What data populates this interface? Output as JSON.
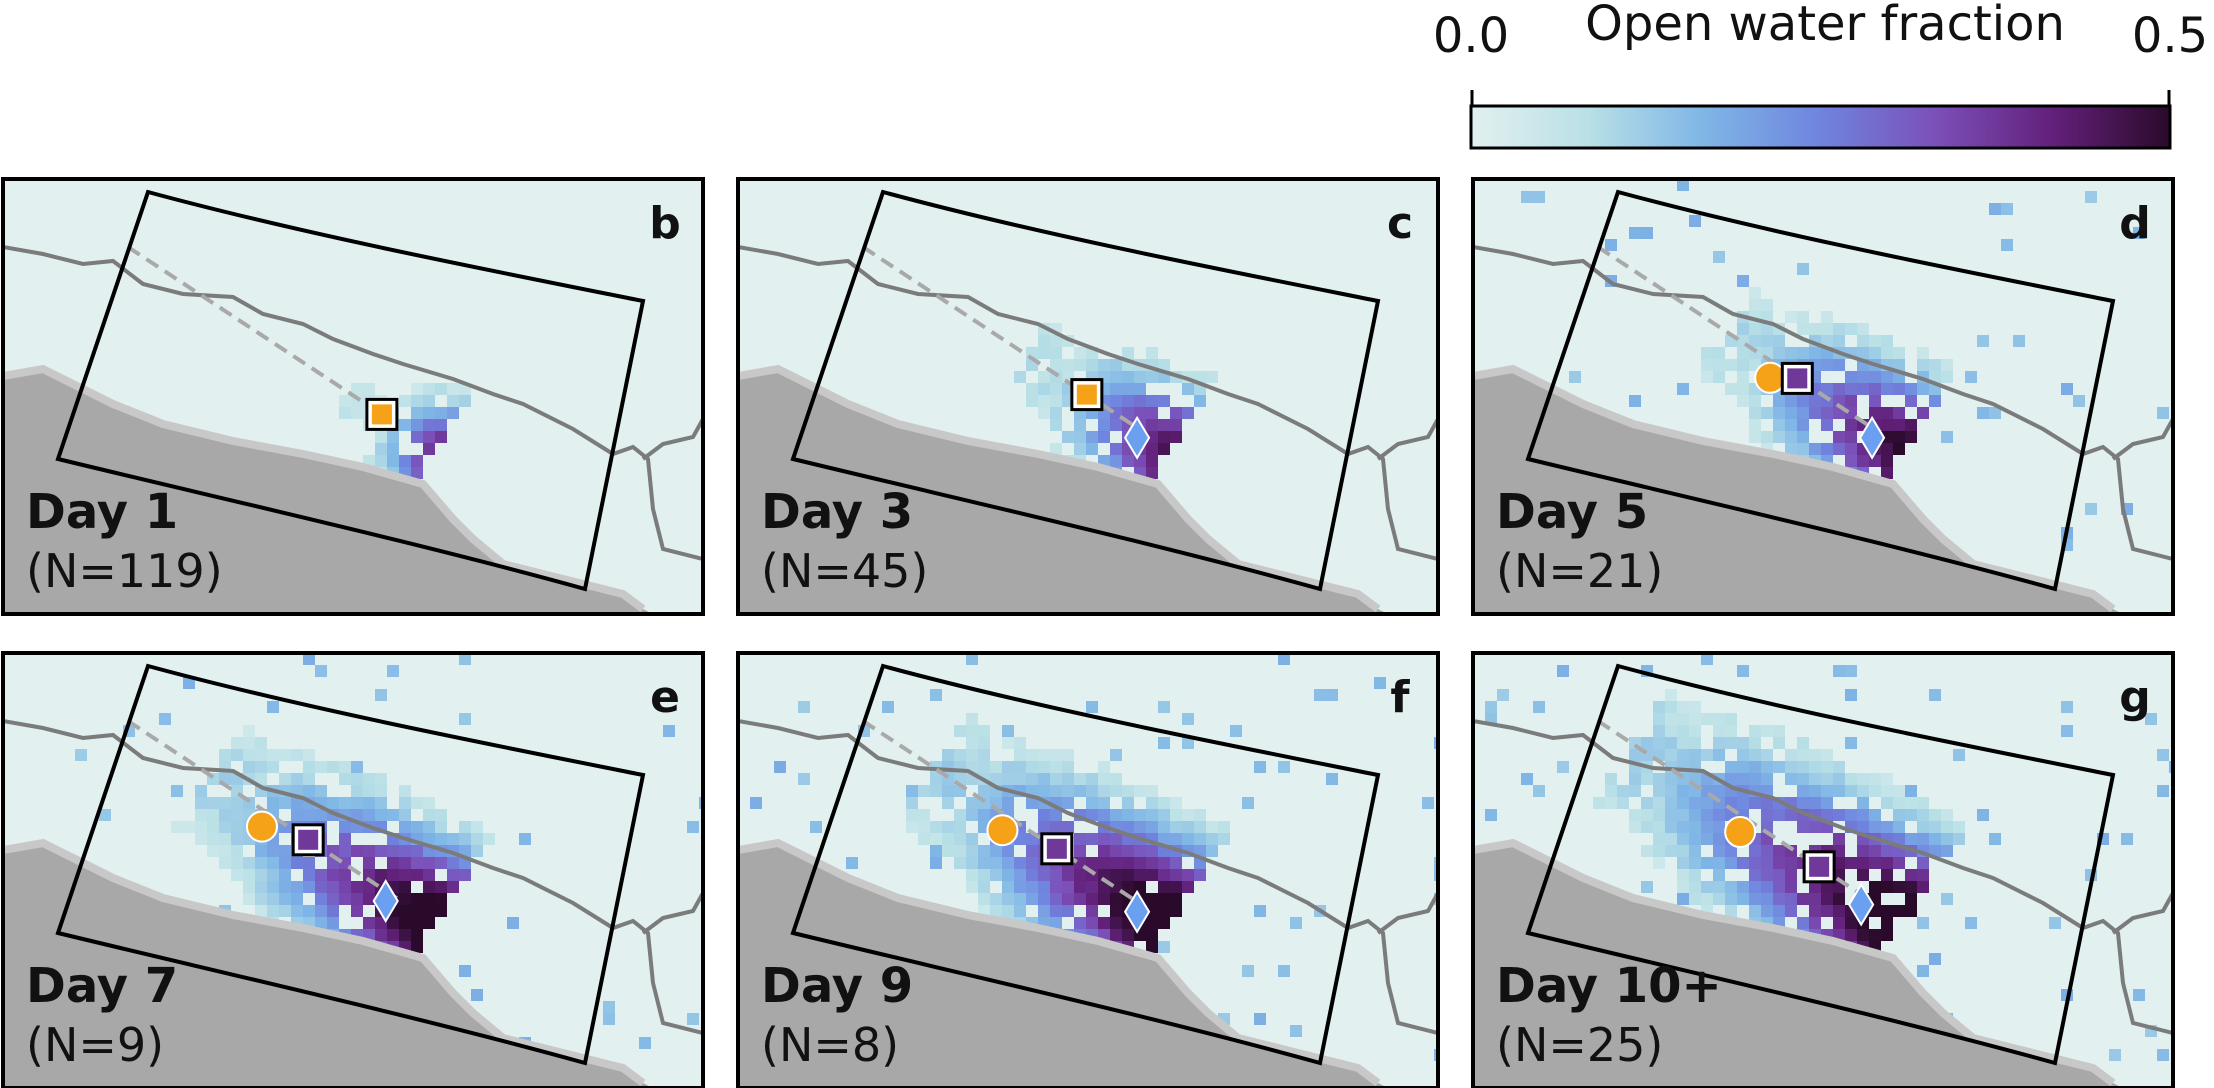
{
  "chart_data": {
    "type": "heatmap",
    "colorbar": {
      "label": "Open water fraction",
      "min_label": "0.0",
      "max_label": "0.5",
      "range": [
        0.0,
        0.5
      ],
      "colors": [
        "#e2f0f0",
        "#b9e0e6",
        "#7fb6e6",
        "#6f84df",
        "#7b4fb8",
        "#62207a",
        "#2a0a2a"
      ]
    },
    "land_color": "#a8a8a8",
    "water_background_color": "#e2f0f0",
    "marker_colors": {
      "circle": "#f5a219",
      "square_fill": "#f5a219",
      "diamond": "#6aa0ef"
    },
    "panels": [
      {
        "letter": "b",
        "day_label": "Day 1",
        "count_label": "(N=119)",
        "spread": 0.08,
        "intensity": 0.55,
        "circle": null,
        "square_at": 0.93,
        "square_filled": true,
        "diamond_at": null
      },
      {
        "letter": "c",
        "day_label": "Day 3",
        "count_label": "(N=45)",
        "spread": 0.28,
        "intensity": 0.75,
        "circle": null,
        "square_at": 0.82,
        "square_filled": true,
        "diamond_at": 0.96
      },
      {
        "letter": "d",
        "day_label": "Day 5",
        "count_label": "(N=21)",
        "spread": 0.42,
        "intensity": 0.85,
        "circle": [
          0.66,
          0.52
        ],
        "square_at": 0.73,
        "square_filled": false,
        "diamond_at": 0.96
      },
      {
        "letter": "e",
        "day_label": "Day 7",
        "count_label": "(N=9)",
        "spread": 0.58,
        "intensity": 0.95,
        "circle": [
          0.52,
          0.52
        ],
        "square_at": 0.66,
        "square_filled": false,
        "diamond_at": 0.9
      },
      {
        "letter": "f",
        "day_label": "Day 9",
        "count_label": "(N=8)",
        "spread": 0.62,
        "intensity": 1.0,
        "circle": [
          0.54,
          0.48
        ],
        "square_at": 0.71,
        "square_filled": false,
        "diamond_at": 0.96
      },
      {
        "letter": "g",
        "day_label": "Day 10+",
        "count_label": "(N=25)",
        "spread": 0.75,
        "intensity": 1.0,
        "circle": [
          0.55,
          0.5
        ],
        "square_at": 0.81,
        "square_filled": false,
        "diamond_at": 0.92
      }
    ]
  }
}
